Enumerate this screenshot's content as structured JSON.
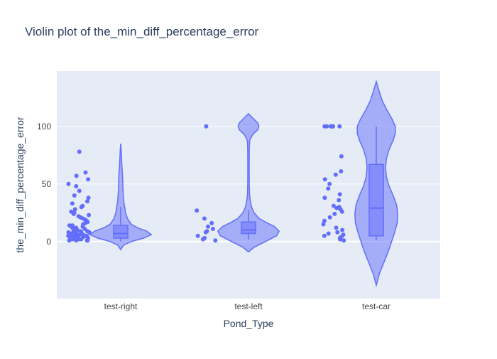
{
  "title": "Violin plot of the_min_diff_percentage_error",
  "chart_data": {
    "type": "violin",
    "title": "Violin plot of the_min_diff_percentage_error",
    "xlabel": "Pond_Type",
    "ylabel": "the_min_diff_percentage_error",
    "categories": [
      "test-right",
      "test-left",
      "test-car"
    ],
    "ylim": [
      -49.5,
      148
    ],
    "yticks": [
      0,
      50,
      100
    ],
    "grid": true,
    "legend": "none",
    "colors": {
      "marker": "#636efa",
      "fill": "rgba(99,110,250,0.5)",
      "plot_bg": "#e5ecf6",
      "grid": "#ffffff",
      "text": "#2a3f5f"
    },
    "series": [
      {
        "category": "test-right",
        "points": [
          1,
          1,
          1,
          1,
          1,
          2,
          2,
          2,
          2,
          2,
          2,
          3,
          3,
          3,
          3,
          3,
          4,
          4,
          4,
          4,
          5,
          5,
          5,
          5,
          5,
          6,
          6,
          6,
          6,
          7,
          7,
          7,
          7,
          8,
          8,
          8,
          8,
          9,
          9,
          9,
          10,
          10,
          10,
          11,
          11,
          12,
          12,
          13,
          13,
          14,
          14,
          15,
          16,
          17,
          18,
          19,
          20,
          21,
          22,
          23,
          24,
          25,
          26,
          28,
          30,
          31,
          33,
          35,
          38,
          40,
          44,
          48,
          50,
          54,
          57,
          60,
          78
        ],
        "box": {
          "min": 0,
          "q1": 3,
          "median": 7,
          "q3": 14,
          "max": 30
        },
        "violin": [
          [
            -7,
            0
          ],
          [
            -3,
            0.1
          ],
          [
            0,
            0.35
          ],
          [
            3,
            0.75
          ],
          [
            6,
            1.0
          ],
          [
            9,
            0.85
          ],
          [
            12,
            0.55
          ],
          [
            15,
            0.35
          ],
          [
            20,
            0.22
          ],
          [
            25,
            0.16
          ],
          [
            30,
            0.13
          ],
          [
            35,
            0.1
          ],
          [
            40,
            0.085
          ],
          [
            45,
            0.075
          ],
          [
            50,
            0.07
          ],
          [
            55,
            0.065
          ],
          [
            60,
            0.055
          ],
          [
            65,
            0.04
          ],
          [
            70,
            0.03
          ],
          [
            75,
            0.022
          ],
          [
            80,
            0.015
          ],
          [
            85,
            0
          ]
        ]
      },
      {
        "category": "test-left",
        "points": [
          1,
          2,
          3,
          5,
          8,
          9,
          11,
          13,
          16,
          20,
          27,
          100
        ],
        "box": {
          "min": 2,
          "q1": 7,
          "median": 10,
          "q3": 17,
          "max": 27
        },
        "violin": [
          [
            -9,
            0
          ],
          [
            -5,
            0.18
          ],
          [
            0,
            0.55
          ],
          [
            5,
            0.92
          ],
          [
            9,
            1.0
          ],
          [
            13,
            0.85
          ],
          [
            17,
            0.55
          ],
          [
            20,
            0.35
          ],
          [
            25,
            0.18
          ],
          [
            30,
            0.1
          ],
          [
            35,
            0.06
          ],
          [
            40,
            0.035
          ],
          [
            50,
            0.025
          ],
          [
            60,
            0.022
          ],
          [
            70,
            0.022
          ],
          [
            80,
            0.025
          ],
          [
            88,
            0.04
          ],
          [
            93,
            0.14
          ],
          [
            97,
            0.3
          ],
          [
            100,
            0.34
          ],
          [
            103,
            0.3
          ],
          [
            107,
            0.15
          ],
          [
            111,
            0
          ]
        ]
      },
      {
        "category": "test-car",
        "points": [
          1,
          2,
          3,
          4,
          5,
          6,
          7,
          8,
          10,
          12,
          15,
          18,
          21,
          24,
          26,
          28,
          29,
          30,
          31,
          36,
          38,
          41,
          46,
          50,
          54,
          58,
          61,
          74,
          100,
          100,
          100,
          100,
          100,
          100,
          100,
          100
        ],
        "box": {
          "min": 1,
          "q1": 5,
          "median": 29,
          "q3": 67,
          "max": 100
        },
        "violin": [
          [
            -38,
            0
          ],
          [
            -28,
            0.1
          ],
          [
            -18,
            0.25
          ],
          [
            -8,
            0.4
          ],
          [
            0,
            0.5
          ],
          [
            8,
            0.6
          ],
          [
            16,
            0.68
          ],
          [
            24,
            0.7
          ],
          [
            32,
            0.66
          ],
          [
            40,
            0.55
          ],
          [
            48,
            0.42
          ],
          [
            56,
            0.33
          ],
          [
            64,
            0.3
          ],
          [
            72,
            0.33
          ],
          [
            80,
            0.42
          ],
          [
            88,
            0.55
          ],
          [
            94,
            0.62
          ],
          [
            100,
            0.62
          ],
          [
            106,
            0.52
          ],
          [
            114,
            0.35
          ],
          [
            122,
            0.2
          ],
          [
            130,
            0.1
          ],
          [
            139,
            0
          ]
        ]
      }
    ]
  }
}
